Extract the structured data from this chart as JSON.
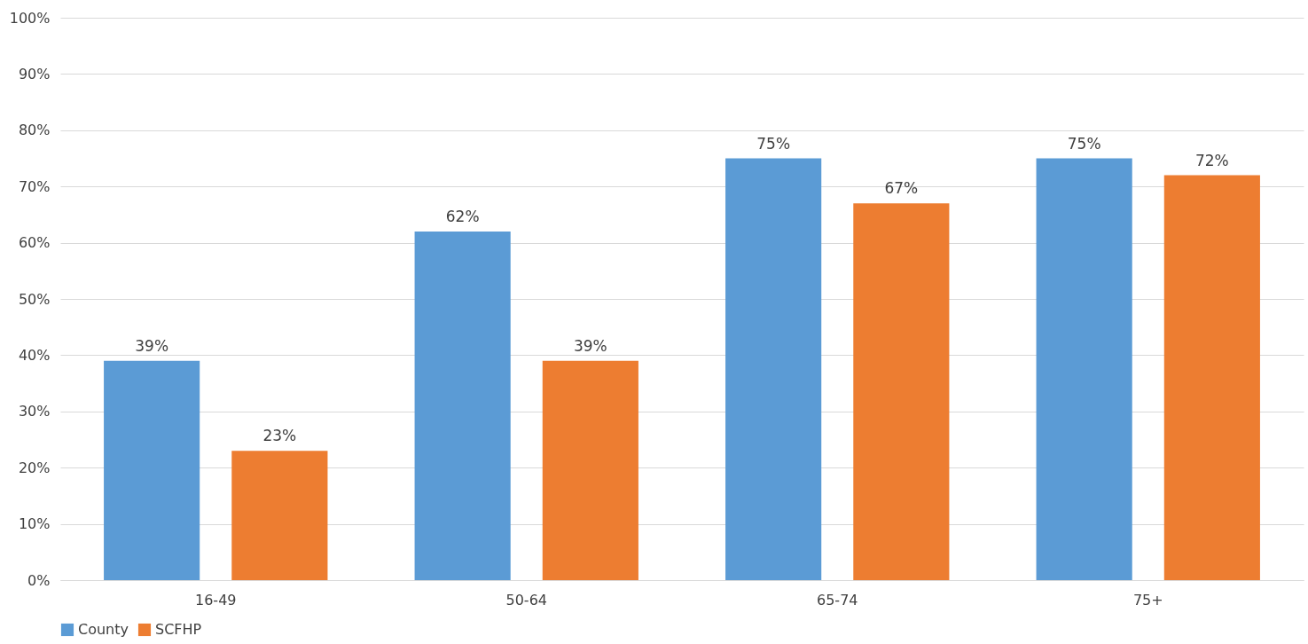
{
  "chart_data": {
    "type": "bar",
    "categories": [
      "16-49",
      "50-64",
      "65-74",
      "75+"
    ],
    "series": [
      {
        "name": "County",
        "color": "#5b9bd5",
        "values": [
          39,
          62,
          75,
          75
        ],
        "value_labels": [
          "39%",
          "62%",
          "75%",
          "75%"
        ]
      },
      {
        "name": "SCFHP",
        "color": "#ed7d31",
        "values": [
          23,
          39,
          67,
          72
        ],
        "value_labels": [
          "23%",
          "39%",
          "67%",
          "72%"
        ]
      }
    ],
    "ylim": [
      0,
      100
    ],
    "yticks": [
      {
        "value": 0,
        "label": "0%"
      },
      {
        "value": 10,
        "label": "10%"
      },
      {
        "value": 20,
        "label": "20%"
      },
      {
        "value": 30,
        "label": "30%"
      },
      {
        "value": 40,
        "label": "40%"
      },
      {
        "value": 50,
        "label": "50%"
      },
      {
        "value": 60,
        "label": "60%"
      },
      {
        "value": 70,
        "label": "70%"
      },
      {
        "value": 80,
        "label": "80%"
      },
      {
        "value": 90,
        "label": "90%"
      },
      {
        "value": 100,
        "label": "100%"
      }
    ],
    "grid": "y",
    "legend": "bottom"
  }
}
